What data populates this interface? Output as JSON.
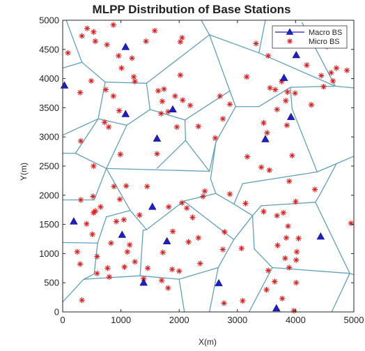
{
  "chart_data": {
    "type": "scatter",
    "title": "MLPP Distribution of Base Stations",
    "xlabel": "X(m)",
    "ylabel": "Y(m)",
    "xlim": [
      0,
      5000
    ],
    "ylim": [
      0,
      5000
    ],
    "x_ticks": [
      "0",
      "1000",
      "2000",
      "3000",
      "4000",
      "5000"
    ],
    "y_ticks": [
      "0",
      "500",
      "1000",
      "1500",
      "2000",
      "2500",
      "3000",
      "3500",
      "4000",
      "4500",
      "5000"
    ],
    "grid": false,
    "legend_position": "top-right",
    "series": [
      {
        "name": "Macro BS",
        "color": "#1f1fc8",
        "marker": "triangle",
        "points": [
          [
            1080,
            4540
          ],
          [
            30,
            3880
          ],
          [
            1080,
            3390
          ],
          [
            1890,
            3470
          ],
          [
            1620,
            2970
          ],
          [
            3480,
            2960
          ],
          [
            3920,
            3340
          ],
          [
            3800,
            4010
          ],
          [
            4010,
            4400
          ],
          [
            190,
            1550
          ],
          [
            1020,
            1320
          ],
          [
            1540,
            1800
          ],
          [
            1790,
            1210
          ],
          [
            1390,
            500
          ],
          [
            2680,
            490
          ],
          [
            3670,
            60
          ],
          [
            4430,
            1290
          ]
        ]
      },
      {
        "name": "Micro BS",
        "color": "#e01818",
        "marker": "asterisk",
        "points": [
          [
            90,
            4440
          ],
          [
            330,
            4730
          ],
          [
            420,
            4860
          ],
          [
            530,
            4800
          ],
          [
            560,
            4640
          ],
          [
            870,
            4920
          ],
          [
            760,
            4580
          ],
          [
            960,
            4390
          ],
          [
            1190,
            4350
          ],
          [
            1580,
            4820
          ],
          [
            1430,
            4640
          ],
          [
            2020,
            4630
          ],
          [
            2050,
            4700
          ],
          [
            2020,
            4060
          ],
          [
            1220,
            4030
          ],
          [
            1010,
            4180
          ],
          [
            300,
            3760
          ],
          [
            490,
            3960
          ],
          [
            740,
            3810
          ],
          [
            870,
            3700
          ],
          [
            1240,
            3950
          ],
          [
            1740,
            3820
          ],
          [
            1640,
            3790
          ],
          [
            1710,
            3610
          ],
          [
            1930,
            3700
          ],
          [
            2060,
            3630
          ],
          [
            2190,
            3540
          ],
          [
            1810,
            3430
          ],
          [
            1960,
            3170
          ],
          [
            1690,
            3400
          ],
          [
            970,
            3450
          ],
          [
            790,
            3170
          ],
          [
            720,
            3250
          ],
          [
            310,
            2930
          ],
          [
            530,
            2500
          ],
          [
            990,
            2700
          ],
          [
            1090,
            2160
          ],
          [
            1620,
            2710
          ],
          [
            2620,
            2980
          ],
          [
            2330,
            3180
          ],
          [
            2750,
            3310
          ],
          [
            2870,
            3560
          ],
          [
            2700,
            3700
          ],
          [
            3160,
            4030
          ],
          [
            3320,
            4600
          ],
          [
            3530,
            4390
          ],
          [
            3560,
            3840
          ],
          [
            3650,
            3810
          ],
          [
            3760,
            3950
          ],
          [
            3860,
            3770
          ],
          [
            3830,
            3620
          ],
          [
            3990,
            3750
          ],
          [
            3680,
            3470
          ],
          [
            3850,
            3200
          ],
          [
            3450,
            3240
          ],
          [
            3510,
            3070
          ],
          [
            4440,
            4050
          ],
          [
            4610,
            4100
          ],
          [
            4700,
            4180
          ],
          [
            4880,
            4140
          ],
          [
            4190,
            4230
          ],
          [
            4640,
            3960
          ],
          [
            4480,
            3860
          ],
          [
            4540,
            4550
          ],
          [
            4270,
            3550
          ],
          [
            3170,
            2660
          ],
          [
            3410,
            2480
          ],
          [
            3550,
            2430
          ],
          [
            3940,
            2680
          ],
          [
            4330,
            2100
          ],
          [
            3890,
            2240
          ],
          [
            4000,
            1890
          ],
          [
            3680,
            1650
          ],
          [
            3790,
            1700
          ],
          [
            3870,
            1470
          ],
          [
            3450,
            1720
          ],
          [
            3140,
            1860
          ],
          [
            2870,
            2020
          ],
          [
            2440,
            2070
          ],
          [
            2410,
            1980
          ],
          [
            2050,
            1870
          ],
          [
            1820,
            1800
          ],
          [
            2230,
            1620
          ],
          [
            2130,
            1780
          ],
          [
            1890,
            1380
          ],
          [
            2330,
            1270
          ],
          [
            2160,
            1200
          ],
          [
            1720,
            1020
          ],
          [
            2360,
            830
          ],
          [
            1880,
            730
          ],
          [
            2000,
            700
          ],
          [
            1460,
            750
          ],
          [
            1390,
            570
          ],
          [
            1700,
            540
          ],
          [
            1810,
            410
          ],
          [
            1240,
            860
          ],
          [
            1150,
            1150
          ],
          [
            1110,
            1030
          ],
          [
            1320,
            1660
          ],
          [
            1450,
            2150
          ],
          [
            880,
            2150
          ],
          [
            980,
            1930
          ],
          [
            520,
            1980
          ],
          [
            650,
            1800
          ],
          [
            530,
            1700
          ],
          [
            560,
            1730
          ],
          [
            310,
            1920
          ],
          [
            410,
            1510
          ],
          [
            510,
            1330
          ],
          [
            830,
            1180
          ],
          [
            920,
            1550
          ],
          [
            1050,
            1580
          ],
          [
            250,
            1030
          ],
          [
            590,
            950
          ],
          [
            300,
            820
          ],
          [
            1060,
            770
          ],
          [
            770,
            750
          ],
          [
            800,
            600
          ],
          [
            590,
            660
          ],
          [
            330,
            200
          ],
          [
            2750,
            1070
          ],
          [
            2780,
            1370
          ],
          [
            3070,
            1090
          ],
          [
            3690,
            1140
          ],
          [
            3820,
            920
          ],
          [
            3890,
            760
          ],
          [
            4010,
            890
          ],
          [
            3530,
            710
          ],
          [
            3500,
            380
          ],
          [
            3090,
            190
          ],
          [
            2770,
            150
          ],
          [
            3770,
            230
          ],
          [
            4020,
            1030
          ],
          [
            4050,
            1260
          ],
          [
            3840,
            1270
          ],
          [
            4010,
            500
          ],
          [
            3640,
            520
          ],
          [
            3970,
            20
          ],
          [
            4950,
            1520
          ]
        ]
      }
    ],
    "voronoi_edges": [
      [
        [
          60,
          5000
        ],
        [
          330,
          4280
        ]
      ],
      [
        [
          330,
          4280
        ],
        [
          0,
          4180
        ]
      ],
      [
        [
          330,
          4280
        ],
        [
          730,
          3940
        ]
      ],
      [
        [
          730,
          3940
        ],
        [
          1440,
          3920
        ]
      ],
      [
        [
          1440,
          3920
        ],
        [
          2520,
          4750
        ]
      ],
      [
        [
          2520,
          4750
        ],
        [
          2380,
          5000
        ]
      ],
      [
        [
          2520,
          4750
        ],
        [
          3370,
          4440
        ]
      ],
      [
        [
          3370,
          4440
        ],
        [
          3480,
          5000
        ]
      ],
      [
        [
          3370,
          4440
        ],
        [
          4680,
          3870
        ]
      ],
      [
        [
          4680,
          3870
        ],
        [
          5000,
          3840
        ]
      ],
      [
        [
          4680,
          3870
        ],
        [
          4110,
          4960
        ]
      ],
      [
        [
          730,
          3940
        ],
        [
          610,
          3310
        ]
      ],
      [
        [
          610,
          3310
        ],
        [
          0,
          3030
        ]
      ],
      [
        [
          610,
          3310
        ],
        [
          220,
          2720
        ]
      ],
      [
        [
          220,
          2720
        ],
        [
          0,
          2720
        ]
      ],
      [
        [
          1440,
          3920
        ],
        [
          1500,
          3470
        ]
      ],
      [
        [
          1500,
          3470
        ],
        [
          1100,
          3200
        ]
      ],
      [
        [
          1100,
          3200
        ],
        [
          610,
          3310
        ]
      ],
      [
        [
          1500,
          3470
        ],
        [
          2100,
          3290
        ]
      ],
      [
        [
          2100,
          3290
        ],
        [
          2870,
          3790
        ]
      ],
      [
        [
          2520,
          4750
        ],
        [
          2870,
          3790
        ]
      ],
      [
        [
          2870,
          3790
        ],
        [
          2970,
          3520
        ]
      ],
      [
        [
          2970,
          3520
        ],
        [
          3370,
          3520
        ]
      ],
      [
        [
          3370,
          3520
        ],
        [
          3910,
          3850
        ]
      ],
      [
        [
          3910,
          3850
        ],
        [
          4680,
          3870
        ]
      ],
      [
        [
          3910,
          3850
        ],
        [
          3940,
          3480
        ]
      ],
      [
        [
          3940,
          3480
        ],
        [
          4370,
          2400
        ]
      ],
      [
        [
          4370,
          2400
        ],
        [
          4700,
          2540
        ]
      ],
      [
        [
          4700,
          2540
        ],
        [
          5000,
          2670
        ]
      ],
      [
        [
          4700,
          2540
        ],
        [
          4450,
          2070
        ]
      ],
      [
        [
          1100,
          3200
        ],
        [
          750,
          2460
        ]
      ],
      [
        [
          220,
          2720
        ],
        [
          750,
          2460
        ]
      ],
      [
        [
          750,
          2460
        ],
        [
          2520,
          2410
        ]
      ],
      [
        [
          2100,
          3290
        ],
        [
          2110,
          2940
        ]
      ],
      [
        [
          2110,
          2940
        ],
        [
          1620,
          2460
        ]
      ],
      [
        [
          2110,
          2940
        ],
        [
          2520,
          2410
        ]
      ],
      [
        [
          2970,
          3520
        ],
        [
          2630,
          2910
        ]
      ],
      [
        [
          2630,
          2910
        ],
        [
          2520,
          2410
        ]
      ],
      [
        [
          2630,
          2910
        ],
        [
          2540,
          2280
        ]
      ],
      [
        [
          4370,
          2400
        ],
        [
          3090,
          2200
        ]
      ],
      [
        [
          3090,
          2200
        ],
        [
          2940,
          1850
        ]
      ],
      [
        [
          2940,
          1850
        ],
        [
          3260,
          1650
        ]
      ],
      [
        [
          3260,
          1650
        ],
        [
          3410,
          1820
        ]
      ],
      [
        [
          3410,
          1820
        ],
        [
          4340,
          1880
        ]
      ],
      [
        [
          4340,
          1880
        ],
        [
          4450,
          2070
        ]
      ],
      [
        [
          4340,
          1880
        ],
        [
          4930,
          660
        ]
      ],
      [
        [
          4930,
          660
        ],
        [
          5000,
          640
        ]
      ],
      [
        [
          4930,
          660
        ],
        [
          4620,
          0
        ]
      ],
      [
        [
          2540,
          2280
        ],
        [
          2630,
          2030
        ]
      ],
      [
        [
          2630,
          2030
        ],
        [
          2940,
          1850
        ]
      ],
      [
        [
          2630,
          2030
        ],
        [
          2080,
          1900
        ]
      ],
      [
        [
          2080,
          1900
        ],
        [
          1440,
          1410
        ]
      ],
      [
        [
          1440,
          1410
        ],
        [
          1160,
          1740
        ]
      ],
      [
        [
          1160,
          1740
        ],
        [
          750,
          2460
        ]
      ],
      [
        [
          750,
          2460
        ],
        [
          540,
          1920
        ]
      ],
      [
        [
          540,
          1920
        ],
        [
          0,
          1920
        ]
      ],
      [
        [
          1160,
          1740
        ],
        [
          750,
          1630
        ]
      ],
      [
        [
          750,
          1630
        ],
        [
          600,
          1180
        ]
      ],
      [
        [
          600,
          1180
        ],
        [
          0,
          1190
        ]
      ],
      [
        [
          600,
          1180
        ],
        [
          540,
          650
        ]
      ],
      [
        [
          540,
          650
        ],
        [
          360,
          560
        ]
      ],
      [
        [
          360,
          560
        ],
        [
          0,
          170
        ]
      ],
      [
        [
          360,
          560
        ],
        [
          1330,
          620
        ]
      ],
      [
        [
          1330,
          620
        ],
        [
          1380,
          1400
        ]
      ],
      [
        [
          1380,
          1400
        ],
        [
          1440,
          1410
        ]
      ],
      [
        [
          1330,
          620
        ],
        [
          2000,
          560
        ]
      ],
      [
        [
          2000,
          560
        ],
        [
          2090,
          0
        ]
      ],
      [
        [
          2000,
          560
        ],
        [
          2670,
          760
        ]
      ],
      [
        [
          2670,
          760
        ],
        [
          2940,
          1240
        ]
      ],
      [
        [
          2940,
          1240
        ],
        [
          3260,
          1650
        ]
      ],
      [
        [
          2940,
          1240
        ],
        [
          2080,
          1900
        ]
      ],
      [
        [
          2670,
          760
        ],
        [
          2520,
          0
        ]
      ],
      [
        [
          3260,
          1650
        ],
        [
          3290,
          1080
        ]
      ],
      [
        [
          3290,
          1080
        ],
        [
          3600,
          760
        ]
      ],
      [
        [
          3600,
          760
        ],
        [
          3200,
          0
        ]
      ],
      [
        [
          3600,
          760
        ],
        [
          4930,
          660
        ]
      ]
    ]
  },
  "colors": {
    "voronoi": "#5fa0be",
    "axis": "#262626",
    "background": "#ffffff"
  }
}
